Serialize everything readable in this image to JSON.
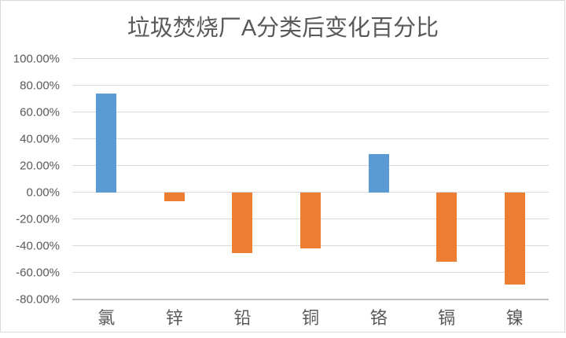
{
  "title": "垃圾焚烧厂A分类后变化百分比",
  "chart_data": {
    "type": "bar",
    "title": "垃圾焚烧厂A分类后变化百分比",
    "categories": [
      "氯",
      "锌",
      "铅",
      "铜",
      "铬",
      "镉",
      "镍"
    ],
    "values": [
      74,
      -6.5,
      -45,
      -41.5,
      29,
      -52,
      -69
    ],
    "xlabel": "",
    "ylabel": "",
    "ylim": [
      -80,
      100
    ],
    "ytick_step": 20,
    "ytick_labels": [
      "100.00%",
      "80.00%",
      "60.00%",
      "40.00%",
      "20.00%",
      "0.00%",
      "-20.00%",
      "-40.00%",
      "-60.00%",
      "-80.00%"
    ],
    "ytick_values": [
      100,
      80,
      60,
      40,
      20,
      0,
      -20,
      -40,
      -60,
      -80
    ],
    "grid": true,
    "legend": "none",
    "colors": {
      "positive_bar": "#5B9BD5",
      "negative_bar": "#ED7D31",
      "gridline": "#D9D9D9",
      "bottom_axis_line": "#BFBFBF",
      "axis_text": "#595959",
      "title_text": "#595959",
      "background": "#FFFFFF",
      "chart_border": "#D9D9D9"
    }
  }
}
